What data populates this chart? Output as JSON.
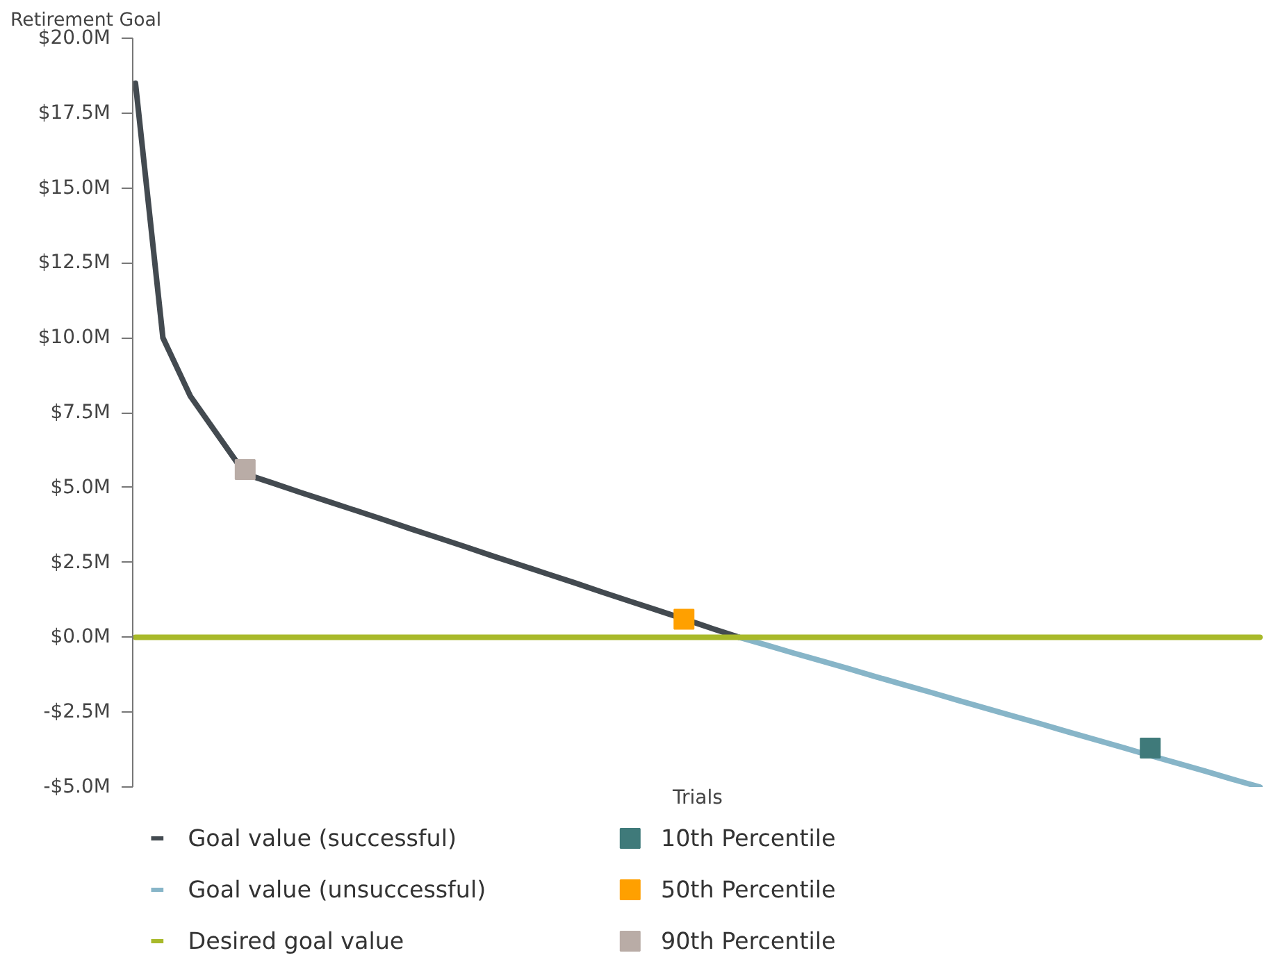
{
  "chart_data": {
    "type": "line",
    "ylabel": "Retirement Goal",
    "xlabel": "Trials",
    "categories": [
      null,
      null,
      null,
      null,
      null,
      null,
      null,
      null,
      null,
      null,
      null,
      null,
      null,
      null,
      null,
      null,
      null,
      null,
      null,
      null,
      null,
      null,
      null,
      null,
      null,
      null,
      null,
      null,
      null,
      null,
      null,
      null,
      null,
      null,
      null,
      null,
      null,
      null,
      null,
      null,
      null,
      null
    ],
    "ylim": [
      -5,
      20
    ],
    "yticks": [
      {
        "value": -5,
        "label": "-$5.0M"
      },
      {
        "value": -2.5,
        "label": "-$2.5M"
      },
      {
        "value": 0,
        "label": "$0.0M"
      },
      {
        "value": 2.5,
        "label": "$2.5M"
      },
      {
        "value": 5,
        "label": "$5.0M"
      },
      {
        "value": 7.5,
        "label": "$7.5M"
      },
      {
        "value": 10,
        "label": "$10.0M"
      },
      {
        "value": 12.5,
        "label": "$12.5M"
      },
      {
        "value": 15,
        "label": "$15.0M"
      },
      {
        "value": 17.5,
        "label": "$17.5M"
      },
      {
        "value": 20,
        "label": "$20.0M"
      }
    ],
    "legend": "bottom",
    "series": [
      {
        "name": "Goal value (successful)",
        "color": "#434a50",
        "values": [
          18.5,
          10.0,
          8.05,
          6.75,
          5.45,
          5.15,
          4.84,
          4.54,
          4.24,
          3.94,
          3.63,
          3.33,
          3.03,
          2.72,
          2.42,
          2.12,
          1.82,
          1.51,
          1.21,
          0.91,
          0.61,
          0.3,
          0,
          null,
          null,
          null,
          null,
          null,
          null,
          null,
          null,
          null,
          null,
          null,
          null,
          null,
          null,
          null,
          null,
          null,
          null,
          null
        ]
      },
      {
        "name": "Goal value (unsuccessful)",
        "color": "#87b5c8",
        "values": [
          null,
          null,
          null,
          null,
          null,
          null,
          null,
          null,
          null,
          null,
          null,
          null,
          null,
          null,
          null,
          null,
          null,
          null,
          null,
          null,
          null,
          null,
          0,
          -0.26,
          -0.53,
          -0.79,
          -1.05,
          -1.32,
          -1.58,
          -1.84,
          -2.11,
          -2.37,
          -2.63,
          -2.89,
          -3.16,
          -3.42,
          -3.68,
          -3.95,
          -4.21,
          -4.47,
          -4.74,
          -5.0
        ]
      },
      {
        "name": "Desired goal value",
        "color": "#a8b92a",
        "values": [
          0,
          0,
          0,
          0,
          0,
          0,
          0,
          0,
          0,
          0,
          0,
          0,
          0,
          0,
          0,
          0,
          0,
          0,
          0,
          0,
          0,
          0,
          0,
          0,
          0,
          0,
          0,
          0,
          0,
          0,
          0,
          0,
          0,
          0,
          0,
          0,
          0,
          0,
          0,
          0,
          0,
          0
        ]
      },
      {
        "name": "10th Percentile",
        "color": "#3f7a7a",
        "type": "scatter",
        "marker": "square",
        "values": [
          null,
          null,
          null,
          null,
          null,
          null,
          null,
          null,
          null,
          null,
          null,
          null,
          null,
          null,
          null,
          null,
          null,
          null,
          null,
          null,
          null,
          null,
          null,
          null,
          null,
          null,
          null,
          null,
          null,
          null,
          null,
          null,
          null,
          null,
          null,
          null,
          null,
          -3.7,
          null,
          null,
          null,
          null
        ]
      },
      {
        "name": "50th Percentile",
        "color": "#ffa000",
        "type": "scatter",
        "marker": "square",
        "values": [
          null,
          null,
          null,
          null,
          null,
          null,
          null,
          null,
          null,
          null,
          null,
          null,
          null,
          null,
          null,
          null,
          null,
          null,
          null,
          null,
          0.6,
          null,
          null,
          null,
          null,
          null,
          null,
          null,
          null,
          null,
          null,
          null,
          null,
          null,
          null,
          null,
          null,
          null,
          null,
          null,
          null,
          null
        ]
      },
      {
        "name": "90th Percentile",
        "color": "#b9aca6",
        "type": "scatter",
        "marker": "square",
        "values": [
          null,
          null,
          null,
          null,
          5.6,
          null,
          null,
          null,
          null,
          null,
          null,
          null,
          null,
          null,
          null,
          null,
          null,
          null,
          null,
          null,
          null,
          null,
          null,
          null,
          null,
          null,
          null,
          null,
          null,
          null,
          null,
          null,
          null,
          null,
          null,
          null,
          null,
          null,
          null,
          null,
          null,
          null
        ]
      }
    ]
  }
}
